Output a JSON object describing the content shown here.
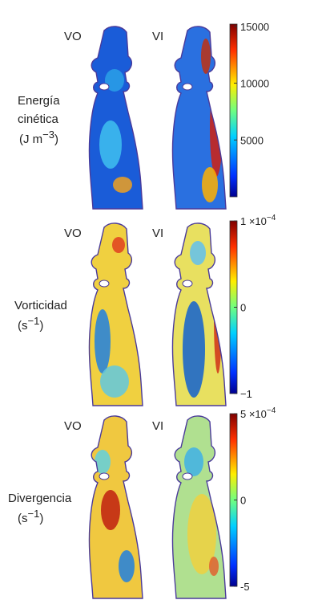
{
  "panels": [
    {
      "columns": [
        "VO",
        "VI"
      ],
      "label": [
        "Energía",
        "cinética"
      ],
      "unit": {
        "text": "(J m",
        "exponent": "−3",
        "close": ")"
      },
      "colorbar": {
        "lim": [
          0,
          15200
        ],
        "ticks": [
          15000,
          10000,
          5000
        ]
      }
    },
    {
      "columns": [
        "VO",
        "VI"
      ],
      "label": [
        "Vorticidad"
      ],
      "unit": {
        "text": "(s",
        "exponent": "−1",
        "close": ")"
      },
      "colorbar": {
        "lim": [
          -1,
          1
        ],
        "ticks": [
          {
            "value": 1,
            "label": "1 ×10",
            "exponent": "−4"
          },
          0,
          {
            "value": -1,
            "label": "−1"
          }
        ]
      }
    },
    {
      "columns": [
        "VO",
        "VI"
      ],
      "label": [
        "Divergencia"
      ],
      "unit": {
        "text": "(s",
        "exponent": "−1",
        "close": ")"
      },
      "colorbar": {
        "lim": [
          -5,
          5
        ],
        "ticks": [
          {
            "value": 5,
            "label": "5 ×10",
            "exponent": "−4"
          },
          0,
          {
            "value": -5,
            "label": "-5"
          }
        ]
      }
    }
  ]
}
